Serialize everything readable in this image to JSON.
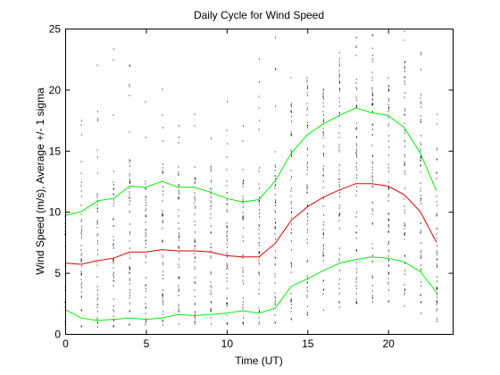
{
  "chart_data": {
    "type": "line",
    "title": "Daily Cycle for Wind Speed",
    "xlabel": "Time (UT)",
    "ylabel": "Wind Speed (m/s), Average +/- 1 sigma",
    "xlim": [
      0,
      24
    ],
    "ylim": [
      0,
      25
    ],
    "xticks": [
      0,
      5,
      10,
      15,
      20
    ],
    "yticks": [
      0,
      5,
      10,
      15,
      20,
      25
    ],
    "grid": false,
    "series": [
      {
        "role": "upper",
        "color": "#00ee00",
        "x": [
          0,
          1,
          2,
          3,
          4,
          5,
          6,
          7,
          8,
          9,
          10,
          11,
          12,
          13,
          14,
          15,
          16,
          17,
          18,
          19,
          20,
          21,
          22,
          23
        ],
        "y": [
          9.7,
          10.0,
          10.9,
          11.1,
          12.1,
          12.0,
          12.5,
          12.0,
          12.0,
          11.6,
          11.1,
          10.8,
          11.0,
          12.5,
          14.8,
          16.3,
          17.2,
          17.9,
          18.5,
          18.1,
          17.9,
          16.9,
          14.8,
          11.7
        ]
      },
      {
        "role": "mean",
        "color": "#dd0000",
        "x": [
          0,
          1,
          2,
          3,
          4,
          5,
          6,
          7,
          8,
          9,
          10,
          11,
          12,
          13,
          14,
          15,
          16,
          17,
          18,
          19,
          20,
          21,
          22,
          23
        ],
        "y": [
          5.8,
          5.7,
          6.0,
          6.2,
          6.7,
          6.7,
          6.9,
          6.8,
          6.8,
          6.7,
          6.4,
          6.3,
          6.3,
          7.4,
          9.3,
          10.4,
          11.2,
          11.8,
          12.3,
          12.3,
          12.1,
          11.4,
          10.0,
          7.5
        ]
      },
      {
        "role": "lower",
        "color": "#00ee00",
        "x": [
          0,
          1,
          2,
          3,
          4,
          5,
          6,
          7,
          8,
          9,
          10,
          11,
          12,
          13,
          14,
          15,
          16,
          17,
          18,
          19,
          20,
          21,
          22,
          23
        ],
        "y": [
          2.0,
          1.3,
          1.1,
          1.2,
          1.3,
          1.2,
          1.3,
          1.6,
          1.5,
          1.6,
          1.7,
          1.9,
          1.7,
          2.1,
          3.9,
          4.5,
          5.2,
          5.8,
          6.1,
          6.3,
          6.2,
          5.9,
          5.1,
          3.4
        ]
      }
    ],
    "scatter_color": "#000000",
    "scatter_hours": [
      0,
      1,
      2,
      3,
      4,
      5,
      6,
      7,
      8,
      9,
      10,
      11,
      12,
      13,
      14,
      15,
      16,
      17,
      18,
      19,
      20,
      21,
      22,
      23
    ],
    "scatter_min": [
      0.8,
      0.6,
      0.6,
      0.6,
      0.7,
      0.7,
      0.7,
      0.8,
      0.8,
      0.8,
      0.8,
      0.8,
      0.8,
      0.9,
      1.2,
      1.5,
      2.0,
      2.2,
      2.5,
      2.6,
      2.6,
      2.3,
      1.7,
      1.0
    ],
    "scatter_max": [
      17,
      17.5,
      22,
      23.3,
      22,
      19,
      20,
      17,
      18,
      16,
      19,
      17,
      22.5,
      24.3,
      21,
      21,
      20,
      23,
      24.3,
      24.5,
      21,
      24.8,
      23,
      18
    ],
    "scatter_count": [
      40,
      44,
      46,
      48,
      50,
      50,
      52,
      52,
      52,
      50,
      50,
      48,
      48,
      50,
      54,
      58,
      60,
      62,
      64,
      66,
      64,
      60,
      56,
      48
    ],
    "scatter_layout": "dense columns of points at each integer hour, concentrated near the mean band"
  }
}
